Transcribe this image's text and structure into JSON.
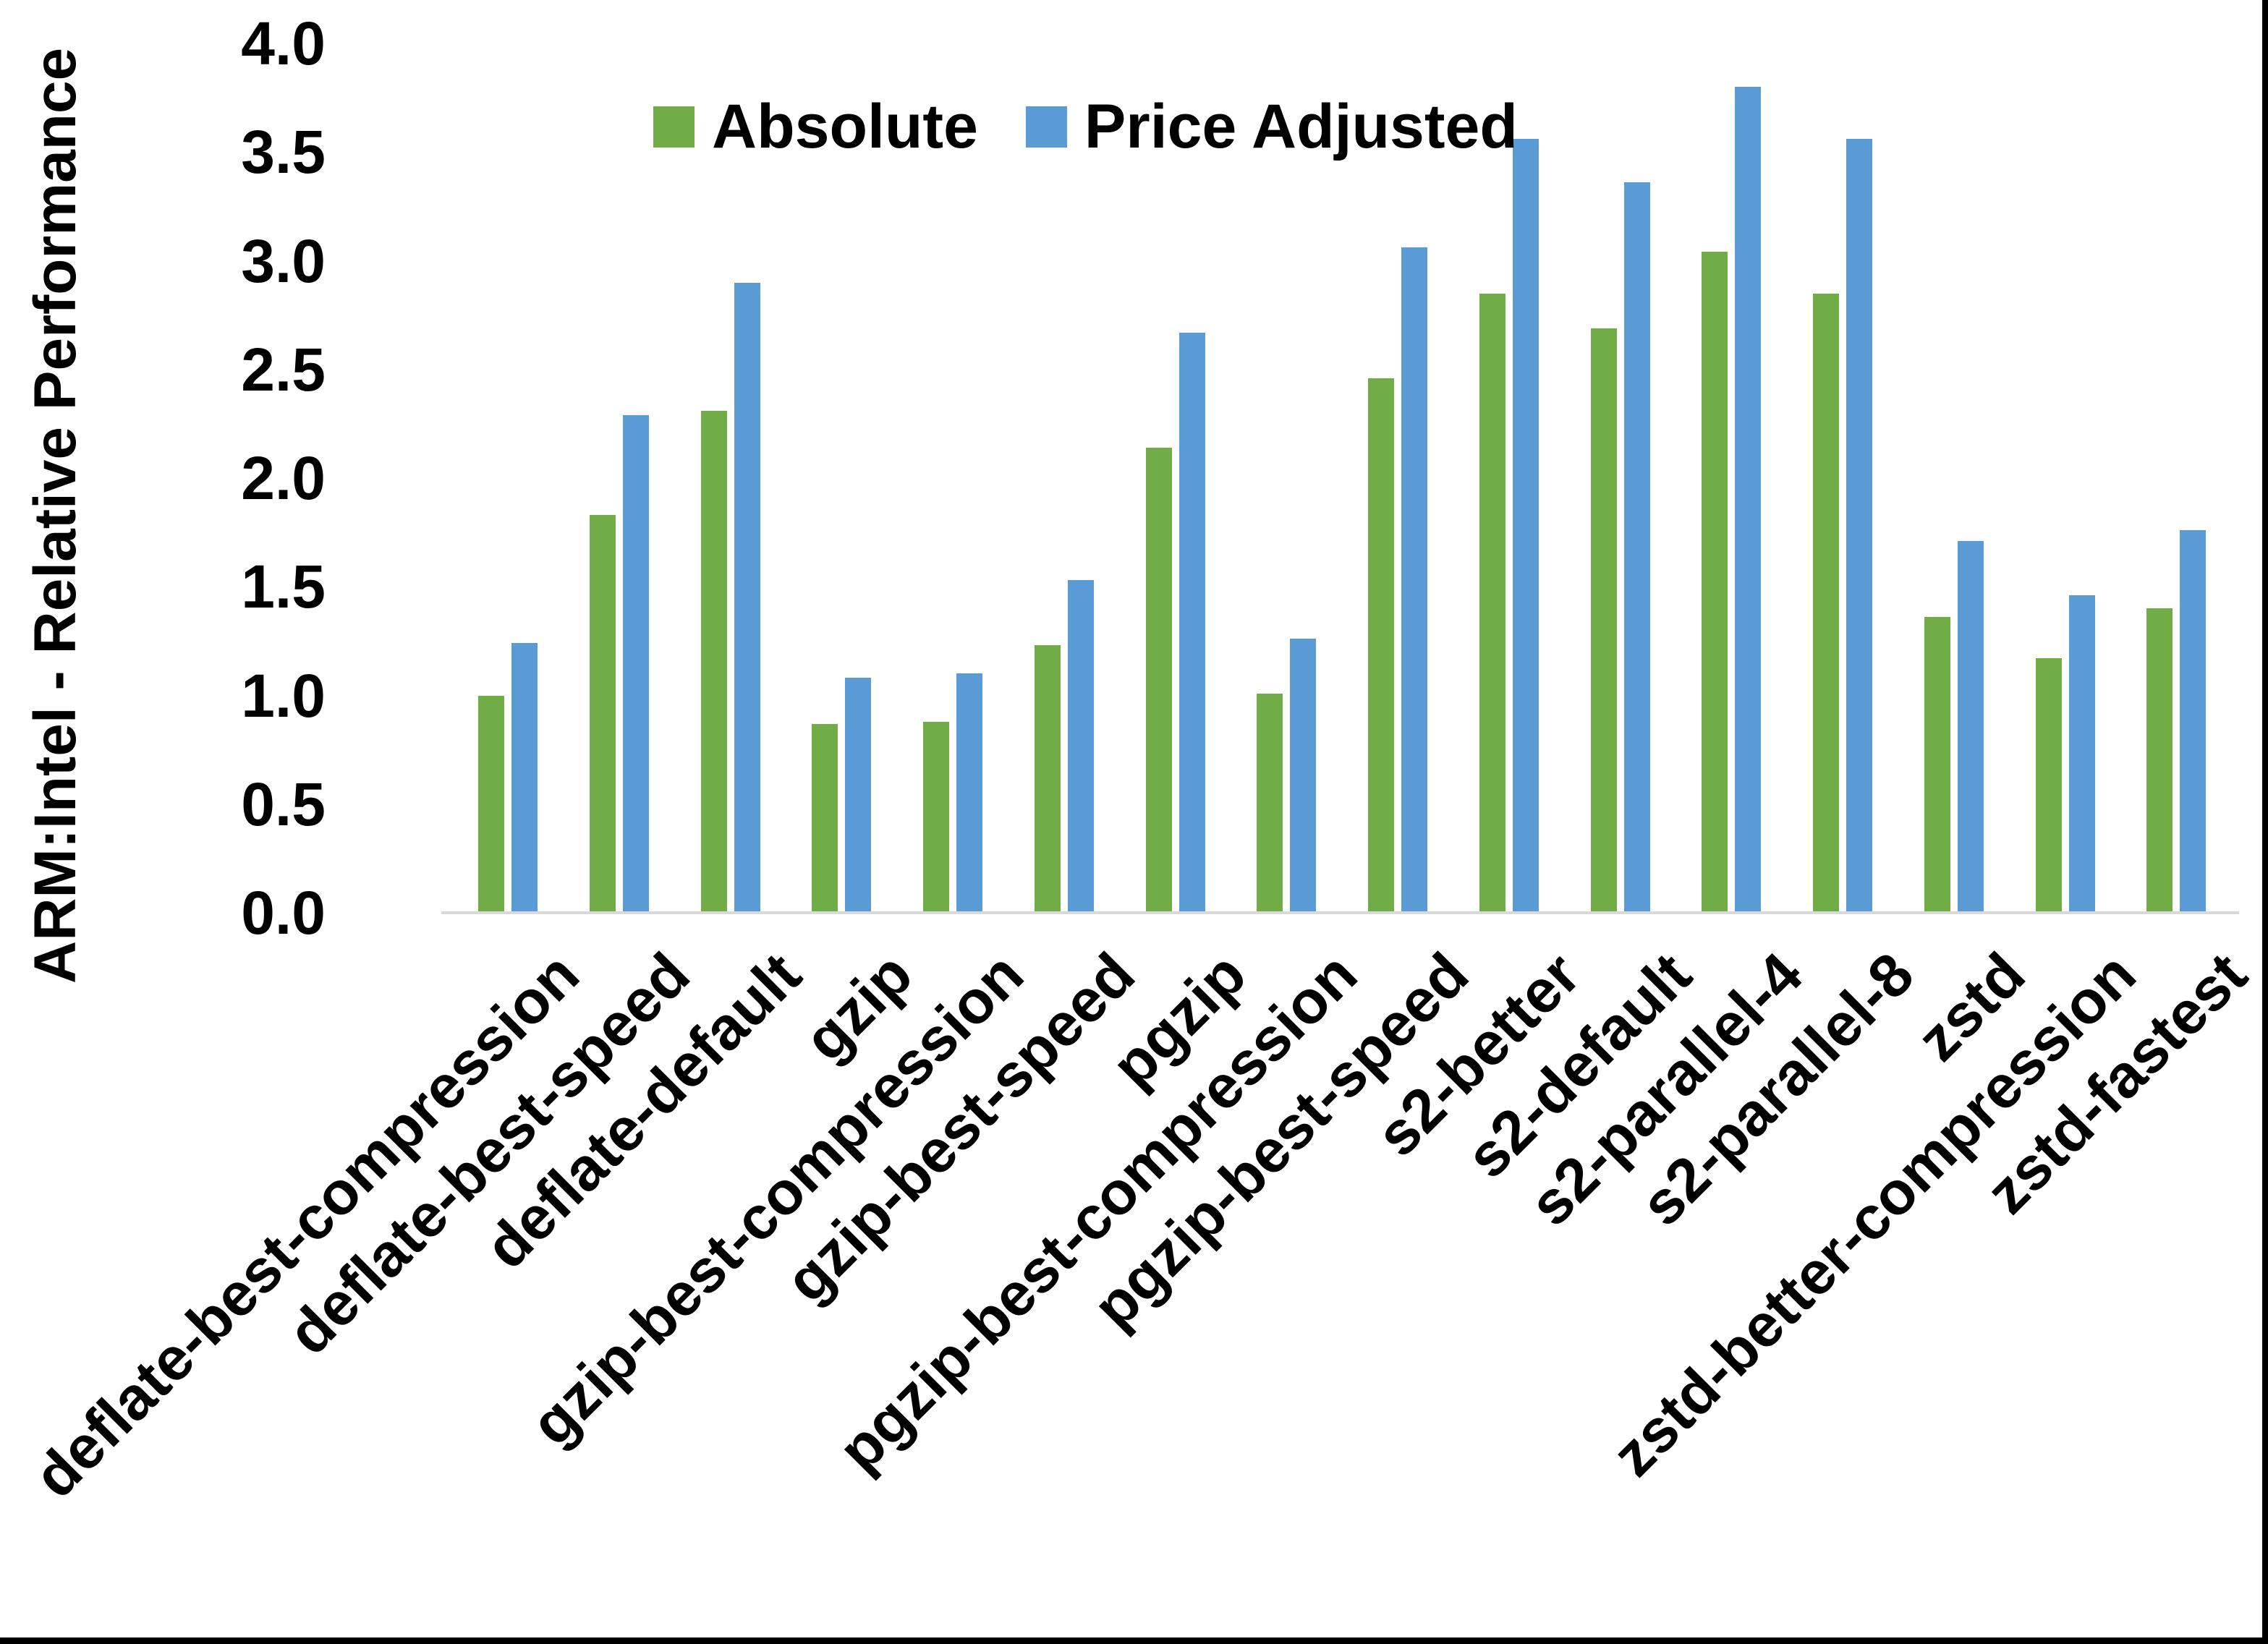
{
  "window": {
    "background": "#ffffff",
    "edge_border_color": "#000000"
  },
  "chart_data": {
    "type": "bar",
    "title": "",
    "xlabel": "",
    "ylabel": "ARM:Intel - Relative Performance",
    "ylim": [
      0.0,
      4.0
    ],
    "ytick_step": 0.5,
    "ytick_labels": [
      "4.0",
      "3.5",
      "3.0",
      "2.5",
      "2.0",
      "1.5",
      "1.0",
      "0.5",
      "0.0"
    ],
    "grid": false,
    "legend_position": "top-center",
    "axis_line_color": "#d9d9d9",
    "text_color": "#000000",
    "categories": [
      "deflate-best-compression",
      "deflate-best-speed",
      "deflate-default",
      "gzip",
      "gzip-best-compression",
      "gzip-best-speed",
      "pgzip",
      "pgzip-best-compression",
      "pgzip-best-speed",
      "s2-better",
      "s2-default",
      "s2-parallel-4",
      "s2-parallel-8",
      "zstd",
      "zstd-better-compression",
      "zstd-fastest"
    ],
    "series": [
      {
        "name": "Absolute",
        "color": "#70AD47",
        "values": [
          1.0,
          1.83,
          2.31,
          0.87,
          0.88,
          1.23,
          2.14,
          1.01,
          2.46,
          2.85,
          2.69,
          3.04,
          2.85,
          1.36,
          1.17,
          1.4
        ]
      },
      {
        "name": "Price Adjusted",
        "color": "#5B9BD5",
        "values": [
          1.24,
          2.29,
          2.9,
          1.08,
          1.1,
          1.53,
          2.67,
          1.26,
          3.06,
          3.56,
          3.36,
          3.8,
          3.56,
          1.71,
          1.46,
          1.76
        ]
      }
    ]
  }
}
